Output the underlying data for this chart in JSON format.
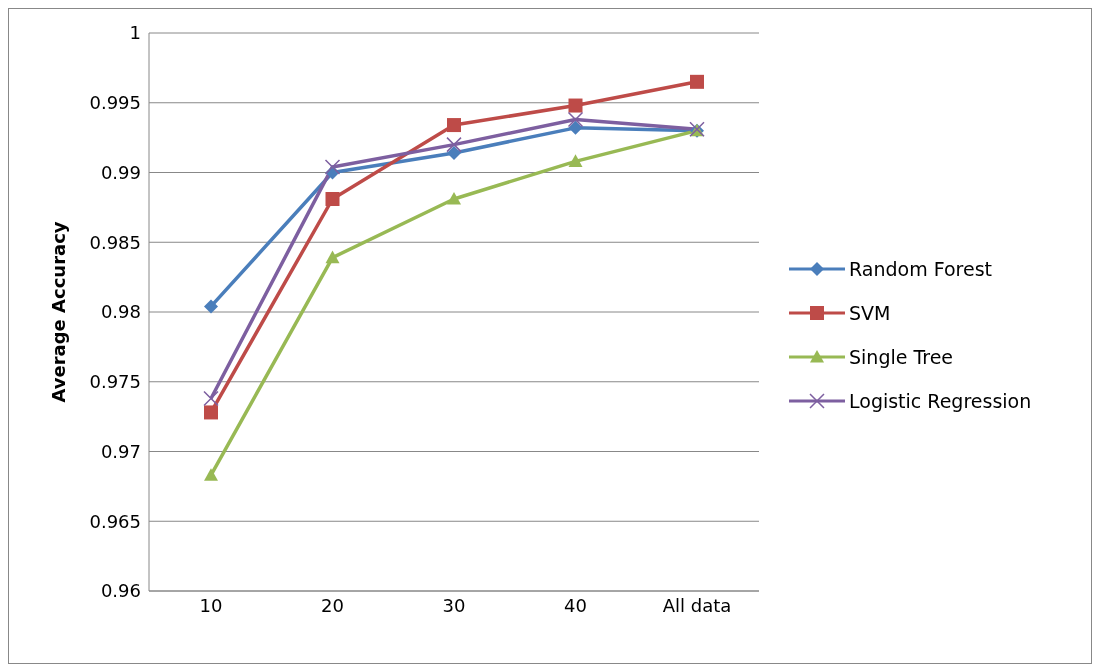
{
  "chart_data": {
    "type": "line",
    "ylabel": "Average Accuracy",
    "categories": [
      "10",
      "20",
      "30",
      "40",
      "All data"
    ],
    "series": [
      {
        "name": "Random Forest",
        "color": "#4a7ebb",
        "marker": "diamond",
        "values": [
          0.9804,
          0.99,
          0.9914,
          0.9932,
          0.993
        ]
      },
      {
        "name": "SVM",
        "color": "#be4b48",
        "marker": "square",
        "values": [
          0.9728,
          0.9881,
          0.9934,
          0.9948,
          0.9965
        ]
      },
      {
        "name": "Single Tree",
        "color": "#98b954",
        "marker": "triangle",
        "values": [
          0.9683,
          0.9839,
          0.9881,
          0.9908,
          0.993
        ]
      },
      {
        "name": "Logistic Regression",
        "color": "#7d5fa0",
        "marker": "cross",
        "values": [
          0.9738,
          0.9904,
          0.992,
          0.9938,
          0.9931
        ]
      }
    ],
    "ylim": [
      0.96,
      1
    ],
    "yticks": [
      0.96,
      0.965,
      0.97,
      0.975,
      0.98,
      0.985,
      0.99,
      0.995,
      1
    ],
    "grid": "y",
    "legend": "right",
    "line_style": "solid"
  }
}
